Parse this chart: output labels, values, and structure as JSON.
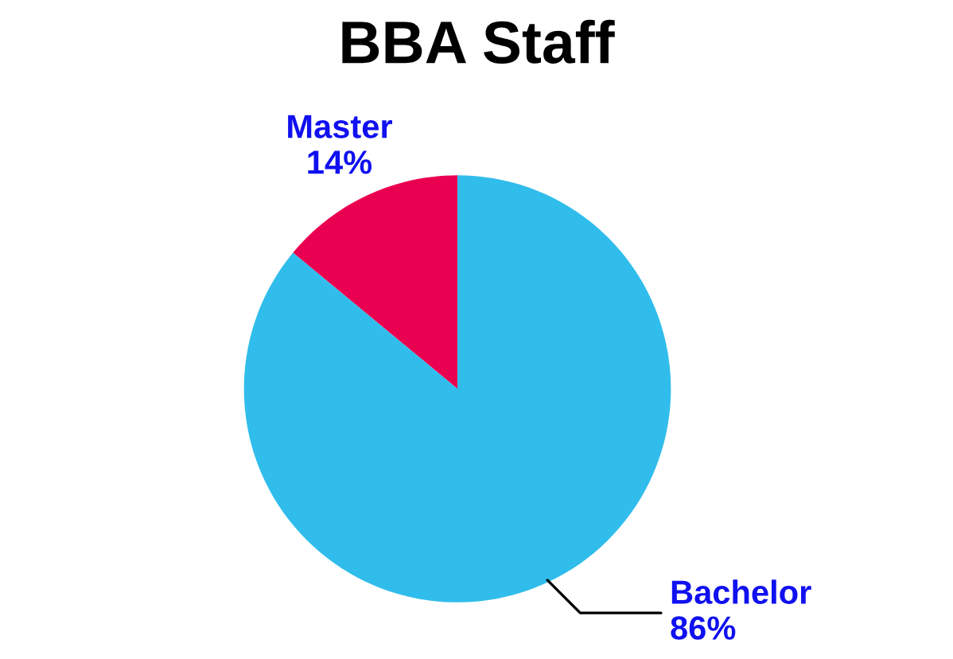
{
  "chart_data": {
    "type": "pie",
    "title": "BBA Staff",
    "categories": [
      "Master",
      "Bachelor"
    ],
    "values": [
      14,
      86
    ],
    "value_labels": [
      "14%",
      "86%"
    ],
    "colors": [
      "#ea0050",
      "#30bdec"
    ],
    "legend": false
  }
}
